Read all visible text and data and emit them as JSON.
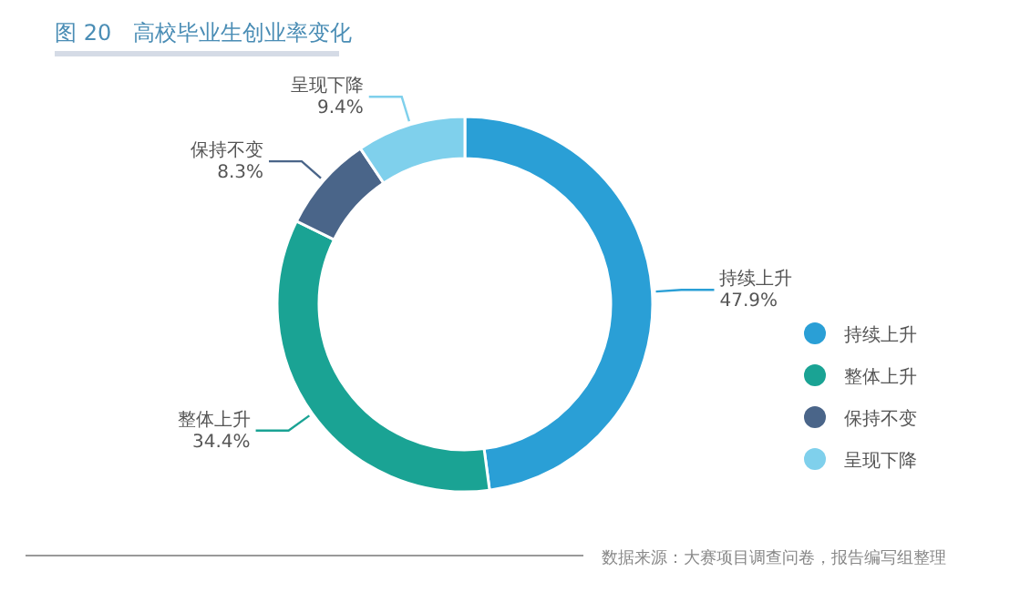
{
  "chart_data": {
    "type": "donut",
    "title": "图 20　高校毕业生创业率变化",
    "categories": [
      "持续上升",
      "整体上升",
      "保持不变",
      "呈现下降"
    ],
    "values": [
      47.9,
      34.4,
      8.3,
      9.4
    ],
    "value_labels": [
      "47.9%",
      "34.4%",
      "8.3%",
      "9.4%"
    ],
    "colors": [
      "#2a9fd6",
      "#1aa394",
      "#4a6589",
      "#7fd0ec"
    ],
    "legend": "right",
    "annotations": [
      "数据来源：大赛项目调查问卷，报告编写组整理"
    ]
  }
}
